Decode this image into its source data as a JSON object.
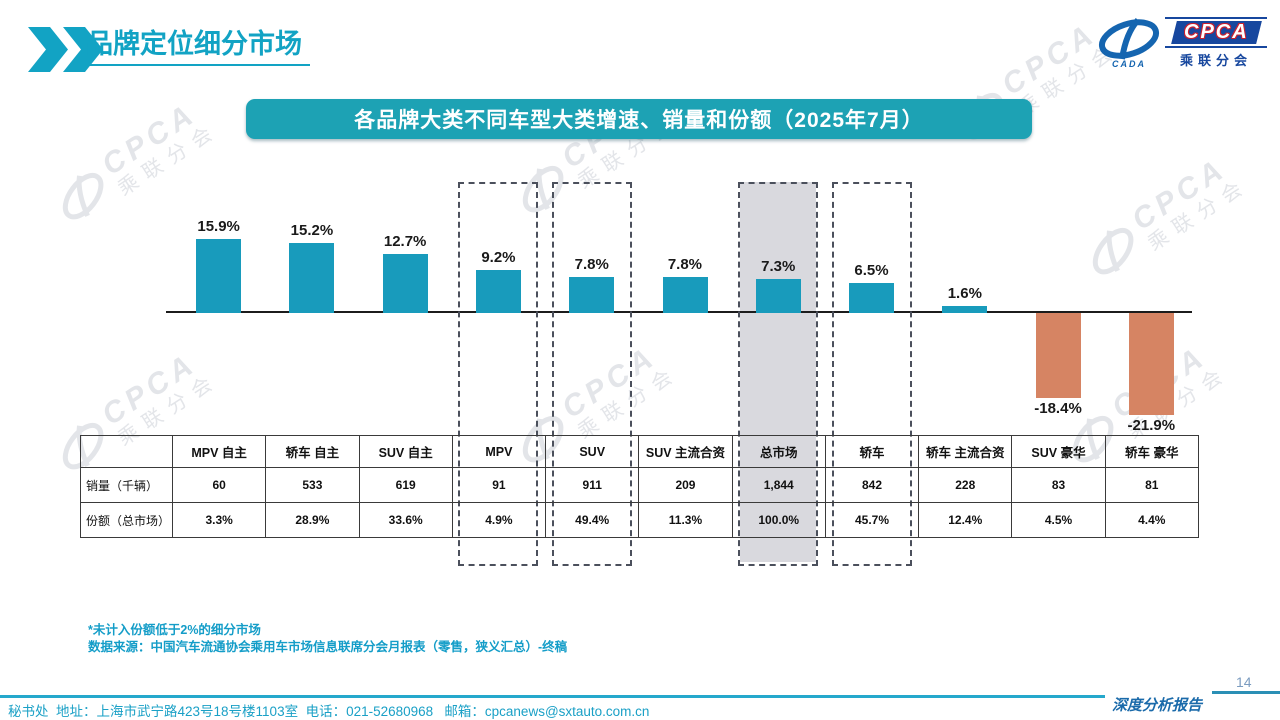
{
  "header": {
    "title": "品牌定位细分市场"
  },
  "logo": {
    "cpca": "CPCA",
    "cada": "CADA",
    "cn": "乘联分会"
  },
  "banner": {
    "title": "各品牌大类不同车型大类增速、销量和份额（2025年7月）"
  },
  "chart_data": {
    "type": "bar",
    "title": "各品牌大类不同车型大类增速、销量和份额（2025年7月）",
    "unit": "%",
    "categories": [
      "MPV 自主",
      "轿车 自主",
      "SUV 自主",
      "MPV",
      "SUV",
      "SUV 主流合资",
      "总市场",
      "轿车",
      "轿车 主流合资",
      "SUV 豪华",
      "轿车 豪华"
    ],
    "series": [
      {
        "name": "增速",
        "values": [
          15.9,
          15.2,
          12.7,
          9.2,
          7.8,
          7.8,
          7.3,
          6.5,
          1.6,
          -18.4,
          -21.9
        ]
      }
    ],
    "value_labels": [
      "15.9%",
      "15.2%",
      "12.7%",
      "9.2%",
      "7.8%",
      "7.8%",
      "7.3%",
      "6.5%",
      "1.6%",
      "-18.4%",
      "-21.9%"
    ],
    "highlight": {
      "dashed_categories": [
        "MPV",
        "SUV",
        "总市场",
        "轿车"
      ],
      "shaded_category": "总市场"
    },
    "colors": {
      "positive": "#189bbc",
      "negative": "#d68463",
      "shade": "#d9d9de",
      "accent": "#12a3c4"
    },
    "axis": {
      "baseline": 0,
      "grid": false,
      "legend": "none"
    },
    "table": {
      "corner": "",
      "rows": [
        {
          "label": "销量（千辆）",
          "values": [
            "60",
            "533",
            "619",
            "91",
            "911",
            "209",
            "1,844",
            "842",
            "228",
            "83",
            "81"
          ]
        },
        {
          "label": "份额（总市场）",
          "values": [
            "3.3%",
            "28.9%",
            "33.6%",
            "4.9%",
            "49.4%",
            "11.3%",
            "100.0%",
            "45.7%",
            "12.4%",
            "4.5%",
            "4.4%"
          ]
        }
      ]
    }
  },
  "footnotes": [
    "*未计入份额低于2%的细分市场",
    "数据来源：中国汽车流通协会乘用车市场信息联席分会月报表（零售，狭义汇总）-终稿"
  ],
  "footer": {
    "contact": "秘书处  地址：上海市武宁路423号18号楼1103室  电话：021-52680968   邮箱：cpcanews@sxtauto.com.cn",
    "report_label": "深度分析报告",
    "page_number": "14"
  },
  "watermark": {
    "line1": "CPCA",
    "line2": "乘联分会"
  }
}
